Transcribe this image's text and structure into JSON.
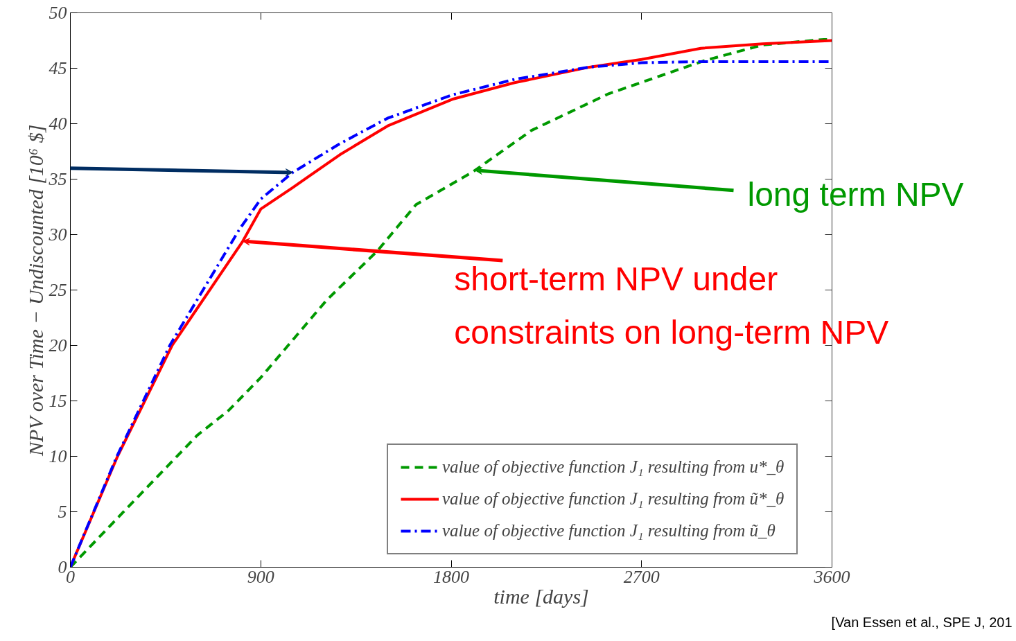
{
  "chart_data": {
    "type": "line",
    "xlabel": "time [days]",
    "ylabel": "NPV over Time − Undiscounted [10⁶ $]",
    "xlim": [
      0,
      3600
    ],
    "xticks": [
      0,
      900,
      1800,
      2700,
      3600
    ],
    "ylim": [
      0,
      50
    ],
    "yticks": [
      0,
      5,
      10,
      15,
      20,
      25,
      30,
      35,
      40,
      45,
      50
    ],
    "grid": false,
    "legend": "bottom right",
    "series": [
      {
        "name": "value of objective function J₁ resulting from u*_θ",
        "color": "#009900",
        "line_style": "dashed",
        "x": [
          0,
          292,
          600,
          746,
          900,
          1212,
          1450,
          1634,
          1906,
          2180,
          2544,
          2999,
          3272,
          3563,
          3600
        ],
        "values": [
          0,
          5.8,
          11.9,
          14.1,
          17.1,
          24.1,
          28.5,
          32.7,
          35.7,
          39.4,
          42.7,
          45.7,
          47.1,
          47.6,
          47.6
        ]
      },
      {
        "name": "value of objective function J₁ resulting from ũ*_θ",
        "color": "#ff0000",
        "line_style": "solid",
        "x": [
          0,
          223,
          481,
          815,
          900,
          1048,
          1274,
          1500,
          1805,
          2100,
          2453,
          2700,
          2980,
          3272,
          3600
        ],
        "values": [
          0,
          10,
          20,
          29.4,
          32.3,
          34.2,
          37.2,
          39.8,
          42.2,
          43.7,
          45.1,
          45.8,
          46.8,
          47.2,
          47.5
        ]
      },
      {
        "name": "value of objective function J₁ resulting from ũ_θ",
        "color": "#0000ff",
        "line_style": "dashdot",
        "x": [
          0,
          220,
          470,
          800,
          900,
          1051,
          1274,
          1500,
          1805,
          2100,
          2453,
          2700,
          2980,
          3300,
          3600
        ],
        "values": [
          0,
          10,
          20,
          30.5,
          33.2,
          35.6,
          38.2,
          40.5,
          42.6,
          44.0,
          45.1,
          45.5,
          45.6,
          45.6,
          45.6
        ]
      }
    ],
    "annotations": [
      {
        "text": "long term NPV",
        "x": 1913,
        "y": 35.8
      },
      {
        "text": "short-term NPV under\nconstraints on long-term NPV",
        "x": 815,
        "y": 29.4
      },
      "[Van Essen et al., SPE J, 201"
    ]
  }
}
